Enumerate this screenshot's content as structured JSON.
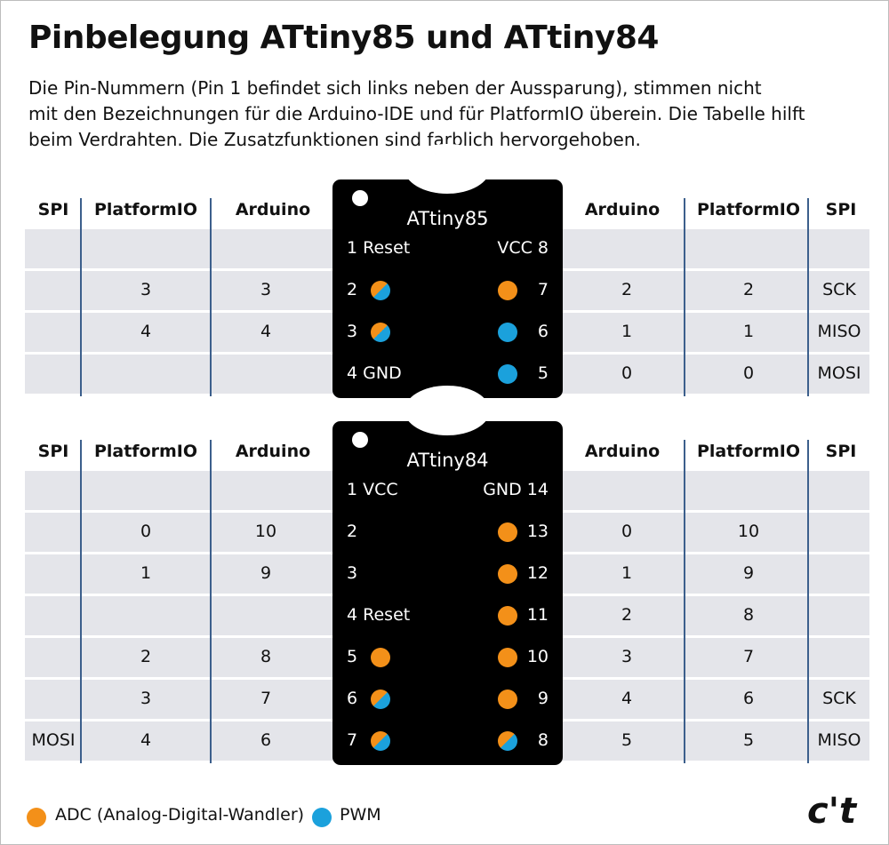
{
  "title": "Pinbelegung ATtiny85 und ATtiny84",
  "intro": [
    "Die Pin-Nummern (Pin 1 befindet sich links neben der Aussparung), stimmen nicht",
    "mit den Bezeichnungen für die Arduino-IDE und für PlatformIO überein. Die Tabelle hilft",
    "beim Verdrahten. Die Zusatzfunktionen sind farblich hervorgehoben."
  ],
  "headers": {
    "spi": "SPI",
    "platformio": "PlatformIO",
    "arduino": "Arduino"
  },
  "colors": {
    "adc": "#f39019",
    "pwm": "#1ba1dc",
    "chip": "#000000",
    "band": "#e4e5ea",
    "divider": "#3c5f8c"
  },
  "attiny85": {
    "name": "ATtiny85",
    "rows": [
      {
        "left_spi": "",
        "left_pio": "",
        "left_ard": "",
        "left_pin": "1 Reset",
        "left_fn": "",
        "right_pin": "VCC 8",
        "right_fn": "",
        "right_ard": "",
        "right_pio": "",
        "right_spi": ""
      },
      {
        "left_spi": "",
        "left_pio": "3",
        "left_ard": "3",
        "left_pin": "2",
        "left_fn": "both",
        "right_pin": "7",
        "right_fn": "adc",
        "right_ard": "2",
        "right_pio": "2",
        "right_spi": "SCK"
      },
      {
        "left_spi": "",
        "left_pio": "4",
        "left_ard": "4",
        "left_pin": "3",
        "left_fn": "both",
        "right_pin": "6",
        "right_fn": "pwm",
        "right_ard": "1",
        "right_pio": "1",
        "right_spi": "MISO"
      },
      {
        "left_spi": "",
        "left_pio": "",
        "left_ard": "",
        "left_pin": "4 GND",
        "left_fn": "",
        "right_pin": "5",
        "right_fn": "pwm",
        "right_ard": "0",
        "right_pio": "0",
        "right_spi": "MOSI"
      }
    ]
  },
  "attiny84": {
    "name": "ATtiny84",
    "rows": [
      {
        "left_spi": "",
        "left_pio": "",
        "left_ard": "",
        "left_pin": "1 VCC",
        "left_fn": "",
        "right_pin": "GND 14",
        "right_fn": "",
        "right_ard": "",
        "right_pio": "",
        "right_spi": ""
      },
      {
        "left_spi": "",
        "left_pio": "0",
        "left_ard": "10",
        "left_pin": "2",
        "left_fn": "",
        "right_pin": "13",
        "right_fn": "adc",
        "right_ard": "0",
        "right_pio": "10",
        "right_spi": ""
      },
      {
        "left_spi": "",
        "left_pio": "1",
        "left_ard": "9",
        "left_pin": "3",
        "left_fn": "",
        "right_pin": "12",
        "right_fn": "adc",
        "right_ard": "1",
        "right_pio": "9",
        "right_spi": ""
      },
      {
        "left_spi": "",
        "left_pio": "",
        "left_ard": "",
        "left_pin": "4 Reset",
        "left_fn": "",
        "right_pin": "11",
        "right_fn": "adc",
        "right_ard": "2",
        "right_pio": "8",
        "right_spi": ""
      },
      {
        "left_spi": "",
        "left_pio": "2",
        "left_ard": "8",
        "left_pin": "5",
        "left_fn": "adc",
        "right_pin": "10",
        "right_fn": "adc",
        "right_ard": "3",
        "right_pio": "7",
        "right_spi": ""
      },
      {
        "left_spi": "",
        "left_pio": "3",
        "left_ard": "7",
        "left_pin": "6",
        "left_fn": "both",
        "right_pin": "9",
        "right_fn": "adc",
        "right_ard": "4",
        "right_pio": "6",
        "right_spi": "SCK"
      },
      {
        "left_spi": "MOSI",
        "left_pio": "4",
        "left_ard": "6",
        "left_pin": "7",
        "left_fn": "both",
        "right_pin": "8",
        "right_fn": "both",
        "right_ard": "5",
        "right_pio": "5",
        "right_spi": "MISO"
      }
    ]
  },
  "legend": [
    {
      "icon": "adc-dot-icon",
      "label": "ADC (Analog-Digital-Wandler)"
    },
    {
      "icon": "pwm-dot-icon",
      "label": "PWM"
    }
  ],
  "logo": "c't"
}
